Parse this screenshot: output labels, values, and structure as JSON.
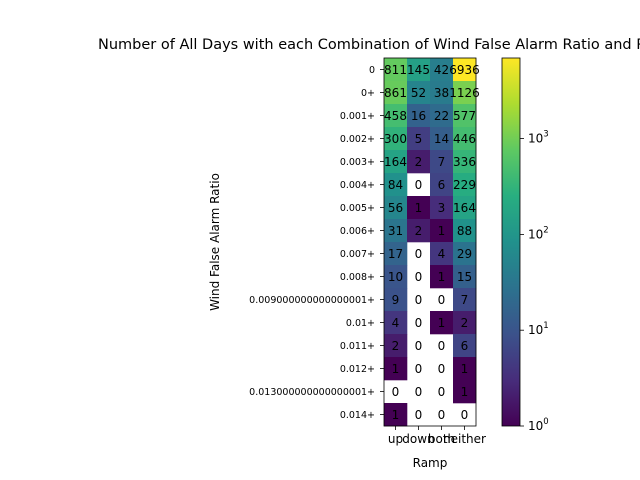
{
  "chart_data": {
    "type": "heatmap",
    "title": "Number of All Days with each Combination of Wind False Alarm Ratio and Ramp",
    "xlabel": "Ramp",
    "ylabel": "Wind False Alarm Ratio",
    "x_categories": [
      "up",
      "down",
      "both",
      "neither"
    ],
    "y_categories": [
      "0",
      "0+",
      "0.001+",
      "0.002+",
      "0.003+",
      "0.004+",
      "0.005+",
      "0.006+",
      "0.007+",
      "0.008+",
      "0.009000000000000001+",
      "0.01+",
      "0.011+",
      "0.012+",
      "0.013000000000000001+",
      "0.014+"
    ],
    "values": [
      [
        811,
        145,
        42,
        6936
      ],
      [
        861,
        52,
        38,
        1126
      ],
      [
        458,
        16,
        22,
        577
      ],
      [
        300,
        5,
        14,
        446
      ],
      [
        164,
        2,
        7,
        336
      ],
      [
        84,
        0,
        6,
        229
      ],
      [
        56,
        1,
        3,
        164
      ],
      [
        31,
        2,
        1,
        88
      ],
      [
        17,
        0,
        4,
        29
      ],
      [
        10,
        0,
        1,
        15
      ],
      [
        9,
        0,
        0,
        7
      ],
      [
        4,
        0,
        1,
        2
      ],
      [
        2,
        0,
        0,
        6
      ],
      [
        1,
        0,
        0,
        1
      ],
      [
        0,
        0,
        0,
        1
      ],
      [
        1,
        0,
        0,
        0
      ]
    ],
    "color_scale": "log",
    "colormap": "viridis",
    "zero_cells": "blank (white)",
    "colorbar": {
      "range": [
        1,
        6936
      ],
      "tick_labels": [
        "10^0",
        "10^1",
        "10^2",
        "10^3"
      ],
      "position": "right"
    }
  }
}
